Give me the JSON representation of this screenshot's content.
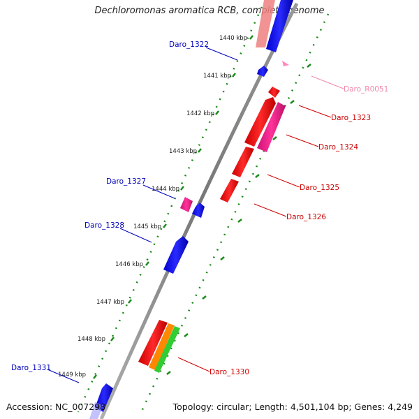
{
  "title": "Dechloromonas aromatica RCB, complete genome",
  "accession": "Accession: NC_007298",
  "summary": "Topology: circular; Length: 4,501,104 bp; Genes: 4,249",
  "colors": {
    "backbone": "#8a8a8a",
    "scale_dots": "#1a8a1a",
    "forward_cds": "#0000ee",
    "reverse_cds": "#ee0000",
    "rna": "#ff66aa",
    "pink_cds": "#ee2288",
    "orange_cds": "#ff8800",
    "green_cds": "#33cc33",
    "label_blue": "#0000bb",
    "label_red": "#cc0000",
    "label_pink": "#ee88aa"
  },
  "kbp_ticks": [
    "1440 kbp",
    "1441 kbp",
    "1442 kbp",
    "1443 kbp",
    "1444 kbp",
    "1445 kbp",
    "1446 kbp",
    "1447 kbp",
    "1448 kbp",
    "1449 kbp"
  ],
  "gene_labels": [
    {
      "text": "Daro_1322",
      "color": "label_blue"
    },
    {
      "text": "Daro_R0051",
      "color": "label_pink"
    },
    {
      "text": "Daro_1323",
      "color": "label_red"
    },
    {
      "text": "Daro_1324",
      "color": "label_red"
    },
    {
      "text": "Daro_1325",
      "color": "label_red"
    },
    {
      "text": "Daro_1326",
      "color": "label_red"
    },
    {
      "text": "Daro_1327",
      "color": "label_blue"
    },
    {
      "text": "Daro_1328",
      "color": "label_blue"
    },
    {
      "text": "Daro_1330",
      "color": "label_red"
    },
    {
      "text": "Daro_1331",
      "color": "label_blue"
    }
  ]
}
